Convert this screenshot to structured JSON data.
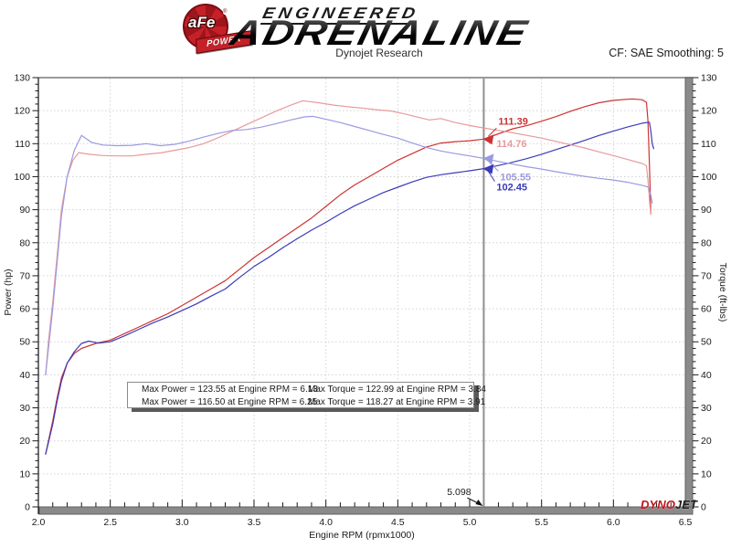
{
  "header": {
    "logo_afe": "aFe",
    "logo_power": "POWER",
    "logo_registered": "®",
    "brand_line1": "ENGINEERED",
    "brand_line2": "ADRENALINE",
    "subtitle": "Dynojet Research",
    "cf_label": "CF: SAE Smoothing: 5"
  },
  "footer_logo": {
    "dyno": "DYNO",
    "jet": "JET"
  },
  "colors": {
    "power_afe": "#cc3333",
    "power_stock": "#3b3bb8",
    "torque_afe": "#e89a9a",
    "torque_stock": "#9a9ae0",
    "legend_power_afe": "#e51212",
    "legend_power_stock": "#1212e5",
    "legend_torque_afe": "#f47c7c",
    "legend_torque_stock": "#7c7cf4",
    "grid": "#d2d2d2",
    "axis_bar": "#8a8a8a",
    "axis_bar_edge": "#606060",
    "cursor": "#909090",
    "tick": "#1a1a1a"
  },
  "chart_data": {
    "type": "line",
    "title": "",
    "xlabel": "Engine RPM (rpmx1000)",
    "ylabel_left": "Power (hp)",
    "ylabel_right": "Torque (ft-lbs)",
    "xlim": [
      2.0,
      6.5
    ],
    "ylim": [
      0,
      130
    ],
    "x_major_step": 0.5,
    "x_minor_step": 0.1,
    "y_major_step": 10,
    "y_minor_step": 2,
    "grid": true,
    "x_ticks": [
      "2.0",
      "2.5",
      "3.0",
      "3.5",
      "4.0",
      "4.5",
      "5.0",
      "5.5",
      "6.0",
      "6.5"
    ],
    "y_ticks": [
      "0",
      "10",
      "20",
      "30",
      "40",
      "50",
      "60",
      "70",
      "80",
      "90",
      "100",
      "110",
      "120",
      "130"
    ],
    "legend_position": "bottom-center",
    "legend": [
      {
        "series": "power_afe",
        "swatch": "legend_power_afe",
        "text": "Max Power = 123.55 at Engine RPM = 6.13"
      },
      {
        "series": "torque_afe",
        "swatch": "legend_torque_afe",
        "text": "Max Torque = 122.99 at Engine RPM = 3.84"
      },
      {
        "series": "power_stock",
        "swatch": "legend_power_stock",
        "text": "Max Power = 116.50 at Engine RPM = 6.25"
      },
      {
        "series": "torque_stock",
        "swatch": "legend_torque_stock",
        "text": "Max Torque = 118.27 at Engine RPM = 3.91"
      }
    ],
    "cursor": {
      "x": 5.098,
      "label": "5.098",
      "readouts": [
        {
          "series": "power_afe",
          "value": 111.39,
          "label": "111.39",
          "offset": [
            16,
            -16
          ],
          "arrow": true
        },
        {
          "series": "torque_afe",
          "value": 114.76,
          "label": "114.76",
          "offset": [
            14,
            21
          ],
          "arrow": false
        },
        {
          "series": "torque_stock",
          "value": 105.55,
          "label": "105.55",
          "offset": [
            18,
            24
          ],
          "arrow": true
        },
        {
          "series": "power_stock",
          "value": 102.45,
          "label": "102.45",
          "offset": [
            14,
            24
          ],
          "arrow": true
        }
      ]
    },
    "series": [
      {
        "name": "power_afe",
        "label": "Max Power = 123.55 at Engine RPM = 6.13",
        "max": [
          6.13,
          123.55
        ],
        "points": [
          [
            2.05,
            16
          ],
          [
            2.07,
            20
          ],
          [
            2.1,
            26
          ],
          [
            2.13,
            33
          ],
          [
            2.16,
            39
          ],
          [
            2.2,
            43.5
          ],
          [
            2.25,
            46.5
          ],
          [
            2.3,
            48
          ],
          [
            2.4,
            49.5
          ],
          [
            2.5,
            50.5
          ],
          [
            2.6,
            52.5
          ],
          [
            2.7,
            54.5
          ],
          [
            2.8,
            56.5
          ],
          [
            2.9,
            58.5
          ],
          [
            3.0,
            61
          ],
          [
            3.1,
            63.5
          ],
          [
            3.2,
            66
          ],
          [
            3.3,
            68.5
          ],
          [
            3.4,
            72
          ],
          [
            3.5,
            75.5
          ],
          [
            3.6,
            78.5
          ],
          [
            3.7,
            81.5
          ],
          [
            3.8,
            84.5
          ],
          [
            3.9,
            87.5
          ],
          [
            4.0,
            91
          ],
          [
            4.1,
            94.5
          ],
          [
            4.2,
            97.5
          ],
          [
            4.3,
            100
          ],
          [
            4.4,
            102.5
          ],
          [
            4.5,
            105
          ],
          [
            4.6,
            107
          ],
          [
            4.7,
            109
          ],
          [
            4.8,
            110.2
          ],
          [
            4.9,
            110.6
          ],
          [
            5.0,
            110.9
          ],
          [
            5.098,
            111.39
          ],
          [
            5.2,
            113
          ],
          [
            5.3,
            114.5
          ],
          [
            5.4,
            115.5
          ],
          [
            5.5,
            116.8
          ],
          [
            5.6,
            118.2
          ],
          [
            5.7,
            119.8
          ],
          [
            5.8,
            121.2
          ],
          [
            5.9,
            122.4
          ],
          [
            6.0,
            123.1
          ],
          [
            6.13,
            123.55
          ],
          [
            6.2,
            123.3
          ],
          [
            6.23,
            122.5
          ],
          [
            6.24,
            117
          ],
          [
            6.25,
            104
          ],
          [
            6.26,
            89
          ]
        ]
      },
      {
        "name": "power_stock",
        "label": "Max Power = 116.50 at Engine RPM = 6.25",
        "max": [
          6.25,
          116.5
        ],
        "points": [
          [
            2.05,
            16
          ],
          [
            2.07,
            19.5
          ],
          [
            2.1,
            25
          ],
          [
            2.13,
            32
          ],
          [
            2.16,
            38
          ],
          [
            2.2,
            43.5
          ],
          [
            2.25,
            47
          ],
          [
            2.3,
            49.5
          ],
          [
            2.35,
            50.2
          ],
          [
            2.42,
            49.6
          ],
          [
            2.5,
            50
          ],
          [
            2.6,
            51.8
          ],
          [
            2.7,
            53.8
          ],
          [
            2.8,
            55.8
          ],
          [
            2.9,
            57.5
          ],
          [
            3.0,
            59.5
          ],
          [
            3.1,
            61.5
          ],
          [
            3.2,
            63.8
          ],
          [
            3.3,
            66
          ],
          [
            3.4,
            69.5
          ],
          [
            3.5,
            72.8
          ],
          [
            3.6,
            75.5
          ],
          [
            3.7,
            78.5
          ],
          [
            3.8,
            81.2
          ],
          [
            3.9,
            83.8
          ],
          [
            4.0,
            86.2
          ],
          [
            4.1,
            88.8
          ],
          [
            4.2,
            91.2
          ],
          [
            4.3,
            93.2
          ],
          [
            4.4,
            95.2
          ],
          [
            4.5,
            96.8
          ],
          [
            4.6,
            98.4
          ],
          [
            4.7,
            99.8
          ],
          [
            4.8,
            100.6
          ],
          [
            4.9,
            101.2
          ],
          [
            5.0,
            101.8
          ],
          [
            5.098,
            102.45
          ],
          [
            5.2,
            103.4
          ],
          [
            5.3,
            104.4
          ],
          [
            5.4,
            105.5
          ],
          [
            5.5,
            106.8
          ],
          [
            5.6,
            108.2
          ],
          [
            5.7,
            109.6
          ],
          [
            5.8,
            111
          ],
          [
            5.9,
            112.5
          ],
          [
            6.0,
            113.8
          ],
          [
            6.1,
            115.1
          ],
          [
            6.2,
            116.2
          ],
          [
            6.25,
            116.5
          ],
          [
            6.26,
            114
          ],
          [
            6.27,
            110
          ],
          [
            6.28,
            108.5
          ]
        ]
      },
      {
        "name": "torque_afe",
        "label": "Max Torque = 122.99 at Engine RPM = 3.84",
        "max": [
          3.84,
          122.99
        ],
        "points": [
          [
            2.05,
            40
          ],
          [
            2.07,
            50
          ],
          [
            2.1,
            62
          ],
          [
            2.13,
            76
          ],
          [
            2.16,
            90
          ],
          [
            2.2,
            100
          ],
          [
            2.24,
            105
          ],
          [
            2.28,
            107.3
          ],
          [
            2.35,
            106.8
          ],
          [
            2.45,
            106.4
          ],
          [
            2.55,
            106.3
          ],
          [
            2.65,
            106.3
          ],
          [
            2.75,
            106.8
          ],
          [
            2.85,
            107.2
          ],
          [
            2.95,
            108
          ],
          [
            3.05,
            108.8
          ],
          [
            3.15,
            110
          ],
          [
            3.25,
            111.8
          ],
          [
            3.35,
            113.8
          ],
          [
            3.45,
            115.8
          ],
          [
            3.55,
            117.8
          ],
          [
            3.65,
            119.8
          ],
          [
            3.75,
            121.6
          ],
          [
            3.84,
            122.99
          ],
          [
            3.95,
            122.4
          ],
          [
            4.05,
            121.7
          ],
          [
            4.15,
            121.2
          ],
          [
            4.25,
            120.8
          ],
          [
            4.35,
            120.3
          ],
          [
            4.45,
            119.9
          ],
          [
            4.55,
            119
          ],
          [
            4.65,
            117.9
          ],
          [
            4.72,
            117.2
          ],
          [
            4.8,
            117.6
          ],
          [
            4.9,
            116.4
          ],
          [
            5.0,
            115.5
          ],
          [
            5.098,
            114.76
          ],
          [
            5.2,
            114
          ],
          [
            5.3,
            113.3
          ],
          [
            5.4,
            112.5
          ],
          [
            5.5,
            111.7
          ],
          [
            5.6,
            110.7
          ],
          [
            5.7,
            109.7
          ],
          [
            5.8,
            108.7
          ],
          [
            5.9,
            107.5
          ],
          [
            6.0,
            106.4
          ],
          [
            6.1,
            105.2
          ],
          [
            6.2,
            104
          ],
          [
            6.23,
            103.3
          ],
          [
            6.24,
            99
          ],
          [
            6.25,
            93
          ],
          [
            6.26,
            88.5
          ]
        ]
      },
      {
        "name": "torque_stock",
        "label": "Max Torque = 118.27 at Engine RPM = 3.91",
        "max": [
          3.91,
          118.27
        ],
        "points": [
          [
            2.05,
            40
          ],
          [
            2.07,
            48
          ],
          [
            2.1,
            60
          ],
          [
            2.13,
            74
          ],
          [
            2.16,
            88
          ],
          [
            2.2,
            100
          ],
          [
            2.25,
            108
          ],
          [
            2.3,
            112.5
          ],
          [
            2.37,
            110.4
          ],
          [
            2.45,
            109.6
          ],
          [
            2.55,
            109.4
          ],
          [
            2.65,
            109.5
          ],
          [
            2.75,
            110
          ],
          [
            2.85,
            109.4
          ],
          [
            2.95,
            109.8
          ],
          [
            3.05,
            110.8
          ],
          [
            3.15,
            112
          ],
          [
            3.25,
            113.1
          ],
          [
            3.35,
            114
          ],
          [
            3.45,
            114.3
          ],
          [
            3.55,
            115
          ],
          [
            3.65,
            116
          ],
          [
            3.75,
            117.1
          ],
          [
            3.85,
            118.1
          ],
          [
            3.91,
            118.27
          ],
          [
            4.0,
            117.4
          ],
          [
            4.1,
            116.4
          ],
          [
            4.2,
            115.2
          ],
          [
            4.3,
            114
          ],
          [
            4.4,
            112.8
          ],
          [
            4.5,
            111.7
          ],
          [
            4.6,
            110.2
          ],
          [
            4.7,
            108.8
          ],
          [
            4.8,
            107.8
          ],
          [
            4.9,
            107
          ],
          [
            5.0,
            106.3
          ],
          [
            5.098,
            105.55
          ],
          [
            5.2,
            104.6
          ],
          [
            5.3,
            103.8
          ],
          [
            5.4,
            103
          ],
          [
            5.5,
            102.3
          ],
          [
            5.6,
            101.5
          ],
          [
            5.7,
            100.8
          ],
          [
            5.8,
            100.1
          ],
          [
            5.9,
            99.5
          ],
          [
            6.0,
            99
          ],
          [
            6.1,
            98.3
          ],
          [
            6.2,
            97.4
          ],
          [
            6.24,
            96.9
          ],
          [
            6.26,
            94.5
          ],
          [
            6.27,
            92
          ]
        ]
      }
    ]
  }
}
